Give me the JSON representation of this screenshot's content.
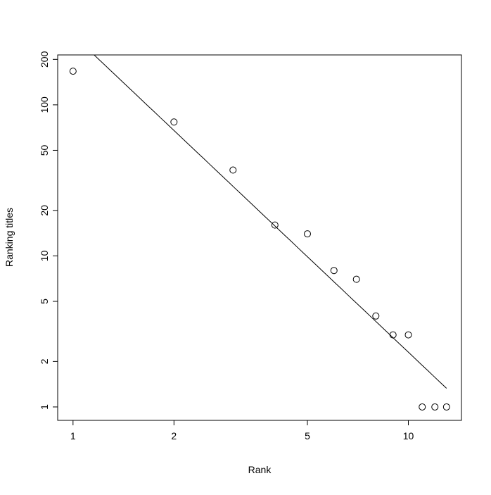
{
  "chart_data": {
    "type": "scatter",
    "title": "",
    "xlabel": "Rank",
    "ylabel": "Ranking titles",
    "x_scale": "log",
    "y_scale": "log",
    "xlim": [
      0.9,
      14.4
    ],
    "ylim": [
      0.815,
      214
    ],
    "x_ticks": [
      1,
      2,
      5,
      10
    ],
    "x_tick_labels": [
      "1",
      "2",
      "5",
      "10"
    ],
    "y_ticks": [
      1,
      2,
      5,
      10,
      20,
      50,
      100,
      200
    ],
    "y_tick_labels": [
      "1",
      "2",
      "5",
      "10",
      "20",
      "50",
      "100",
      "200"
    ],
    "grid": false,
    "legend": "none",
    "marker": "open-circle",
    "points": {
      "x": [
        1,
        2,
        3,
        4,
        5,
        6,
        7,
        8,
        9,
        10,
        11,
        12,
        13
      ],
      "y": [
        167,
        77,
        37,
        16,
        14,
        8,
        7,
        4,
        3,
        3,
        1,
        1,
        1
      ]
    },
    "fit_line": {
      "form": "power law",
      "coefficient": 290,
      "exponent": -2.1,
      "x_range": [
        1,
        13
      ]
    },
    "colors": {
      "points": "#000000",
      "line": "#000000"
    }
  }
}
